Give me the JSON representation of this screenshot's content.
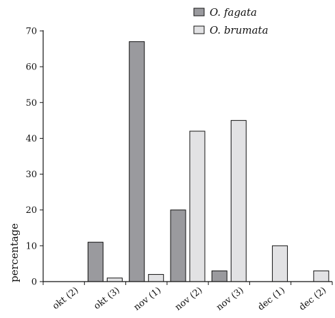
{
  "colors": {
    "series_dark": "#9a9a9e",
    "series_light": "#e2e2e4",
    "stroke": "#111111"
  },
  "chart_data": {
    "type": "bar",
    "categories": [
      "okt (2)",
      "okt (3)",
      "nov (1)",
      "nov (2)",
      "nov (3)",
      "dec (1)",
      "dec (2)"
    ],
    "series": [
      {
        "name": "O. fagata",
        "color": "#9a9a9e",
        "values": [
          0,
          11,
          67,
          20,
          3,
          0,
          0
        ]
      },
      {
        "name": "O. brumata",
        "color": "#e2e2e4",
        "values": [
          0,
          1,
          2,
          42,
          45,
          10,
          3
        ]
      }
    ],
    "ylabel": "percentage",
    "xlabel": "",
    "ylim": [
      0,
      70
    ],
    "yticks": [
      0,
      10,
      20,
      30,
      40,
      50,
      60,
      70
    ],
    "legend_position": "top-right",
    "grid": false
  }
}
